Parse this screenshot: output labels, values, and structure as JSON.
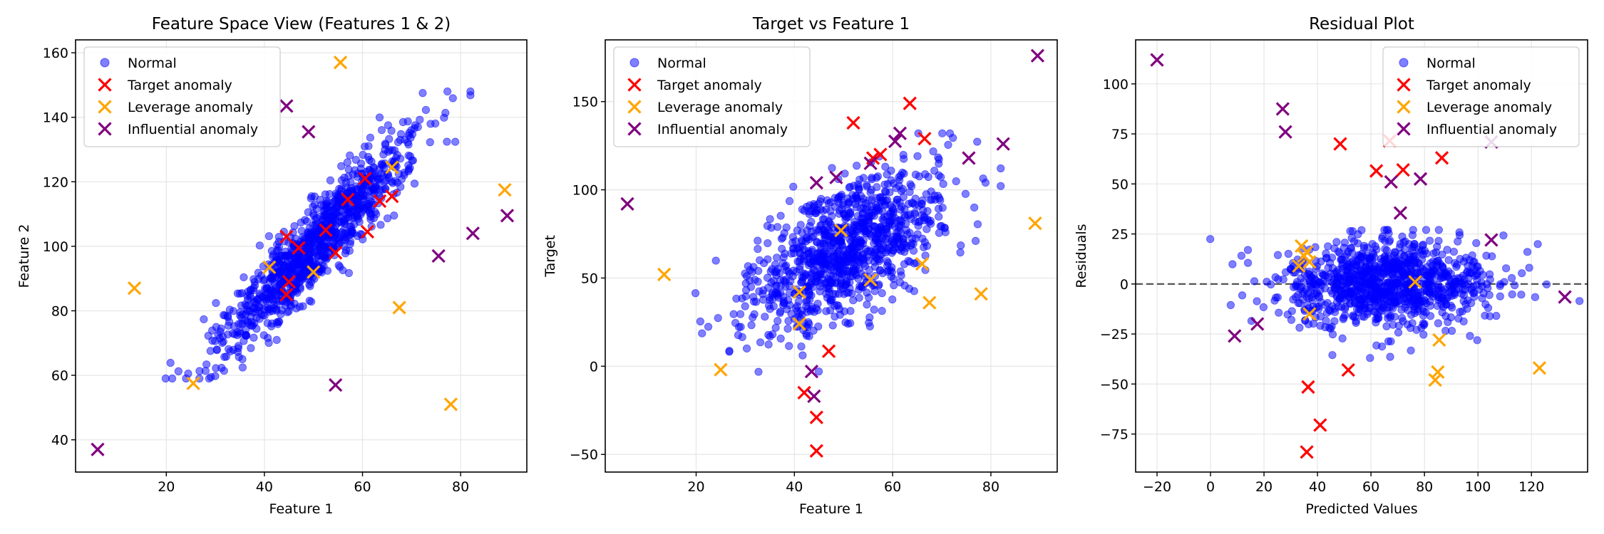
{
  "chart_data": [
    {
      "type": "scatter",
      "title": "Feature Space View (Features 1 & 2)",
      "xlabel": "Feature 1",
      "ylabel": "Feature 2",
      "xlim": [
        1.5,
        93.5
      ],
      "ylim": [
        30,
        164
      ],
      "xticks": [
        20,
        40,
        60,
        80
      ],
      "yticks": [
        40,
        60,
        80,
        100,
        120,
        140,
        160
      ],
      "grid": true,
      "legend": {
        "placement": "upper-left",
        "entries": [
          "Normal",
          "Target anomaly",
          "Leverage anomaly",
          "Influential anomaly"
        ]
      },
      "normal_cloud": {
        "description_center": [
          50,
          100
        ],
        "count": 1000,
        "x_range": [
          18,
          82
        ],
        "y_range": [
          59,
          148
        ],
        "trend": "positive"
      },
      "series": [
        {
          "name": "Target anomaly",
          "color": "#ff0000",
          "marker": "x",
          "points": [
            [
              44.5,
              103
            ],
            [
              45,
              89
            ],
            [
              44.5,
              85
            ],
            [
              47,
              99.5
            ],
            [
              52.5,
              105
            ],
            [
              54.5,
              98
            ],
            [
              57,
              114.5
            ],
            [
              63.5,
              114
            ],
            [
              66,
              115.5
            ],
            [
              60.5,
              121
            ],
            [
              61,
              104.5
            ]
          ]
        },
        {
          "name": "Leverage anomaly",
          "color": "#ffa500",
          "marker": "x",
          "points": [
            [
              13.5,
              87
            ],
            [
              25.5,
              57.5
            ],
            [
              41,
              93.5
            ],
            [
              50,
              92
            ],
            [
              55.5,
              157
            ],
            [
              66,
              124.5
            ],
            [
              67.5,
              81
            ],
            [
              78,
              51
            ],
            [
              89,
              117.5
            ]
          ]
        },
        {
          "name": "Influential anomaly",
          "color": "#800080",
          "marker": "x",
          "points": [
            [
              6,
              37
            ],
            [
              44.5,
              143.5
            ],
            [
              49,
              135.5
            ],
            [
              54.5,
              57
            ],
            [
              75.5,
              97
            ],
            [
              82.5,
              104
            ],
            [
              89.5,
              109.5
            ]
          ]
        }
      ]
    },
    {
      "type": "scatter",
      "title": "Target vs Feature 1",
      "xlabel": "Feature 1",
      "ylabel": "Target",
      "xlim": [
        1.5,
        93.5
      ],
      "ylim": [
        -60,
        185
      ],
      "xticks": [
        20,
        40,
        60,
        80
      ],
      "yticks": [
        -50,
        0,
        50,
        100,
        150
      ],
      "grid": true,
      "legend": {
        "placement": "upper-left",
        "entries": [
          "Normal",
          "Target anomaly",
          "Leverage anomaly",
          "Influential anomaly"
        ]
      },
      "normal_cloud": {
        "count": 1000,
        "x_range": [
          18,
          82
        ],
        "y_range": [
          -6,
          132
        ],
        "trend": "positive"
      },
      "series": [
        {
          "name": "Target anomaly",
          "color": "#ff0000",
          "marker": "x",
          "points": [
            [
              52,
              138
            ],
            [
              63.5,
              149
            ],
            [
              66.5,
              129
            ],
            [
              57.5,
              120
            ],
            [
              56,
              118
            ],
            [
              47,
              8.5
            ],
            [
              42,
              -15
            ],
            [
              44.5,
              -29
            ],
            [
              44.5,
              -48
            ]
          ]
        },
        {
          "name": "Leverage anomaly",
          "color": "#ffa500",
          "marker": "x",
          "points": [
            [
              13.5,
              52
            ],
            [
              25,
              -2
            ],
            [
              41,
              42
            ],
            [
              41,
              24
            ],
            [
              49.5,
              77
            ],
            [
              55.5,
              49
            ],
            [
              66,
              58
            ],
            [
              67.5,
              36
            ],
            [
              78,
              41
            ],
            [
              89,
              81
            ]
          ]
        },
        {
          "name": "Influential anomaly",
          "color": "#800080",
          "marker": "x",
          "points": [
            [
              6,
              92
            ],
            [
              44.5,
              104
            ],
            [
              48.5,
              107
            ],
            [
              55.5,
              115
            ],
            [
              60.5,
              127.5
            ],
            [
              61.5,
              132
            ],
            [
              75.5,
              118
            ],
            [
              82.5,
              126
            ],
            [
              89.5,
              176
            ],
            [
              43.5,
              -3
            ],
            [
              44,
              -17
            ]
          ]
        }
      ]
    },
    {
      "type": "scatter",
      "title": "Residual Plot",
      "xlabel": "Predicted Values",
      "ylabel": "Residuals",
      "xlim": [
        -28,
        141
      ],
      "ylim": [
        -94,
        122
      ],
      "xticks": [
        -20,
        0,
        20,
        40,
        60,
        80,
        100,
        120
      ],
      "yticks": [
        -75,
        -50,
        -25,
        0,
        25,
        50,
        75,
        100
      ],
      "grid": true,
      "reference_line": {
        "y": 0,
        "style": "dashed",
        "color": "#555555"
      },
      "legend": {
        "placement": "upper-right",
        "entries": [
          "Normal",
          "Target anomaly",
          "Leverage anomaly",
          "Influential anomaly"
        ]
      },
      "normal_cloud": {
        "count": 1000,
        "x_range": [
          -6,
          120
        ],
        "y_range": [
          -38,
          28
        ],
        "trend": "none"
      },
      "series": [
        {
          "name": "Target anomaly",
          "color": "#ff0000",
          "marker": "x",
          "points": [
            [
              48.5,
              70
            ],
            [
              62,
              56.5
            ],
            [
              67,
              71.5
            ],
            [
              72,
              57
            ],
            [
              86.5,
              63
            ],
            [
              51.5,
              -43
            ],
            [
              36.5,
              -51.5
            ],
            [
              41,
              -70.5
            ],
            [
              36,
              -84
            ]
          ]
        },
        {
          "name": "Leverage anomaly",
          "color": "#ffa500",
          "marker": "x",
          "points": [
            [
              34,
              19
            ],
            [
              36,
              16
            ],
            [
              33,
              9
            ],
            [
              37,
              11
            ],
            [
              35,
              14
            ],
            [
              37,
              -15
            ],
            [
              76.5,
              1
            ],
            [
              85.5,
              -28
            ],
            [
              85,
              -44
            ],
            [
              84,
              -48
            ],
            [
              123,
              -42
            ]
          ]
        },
        {
          "name": "Influential anomaly",
          "color": "#800080",
          "marker": "x",
          "points": [
            [
              -20,
              112
            ],
            [
              27,
              87.5
            ],
            [
              28,
              76
            ],
            [
              9,
              -26
            ],
            [
              17.5,
              -20
            ],
            [
              67.5,
              51
            ],
            [
              71,
              35.5
            ],
            [
              78.5,
              52.5
            ],
            [
              105,
              71
            ],
            [
              105,
              22
            ],
            [
              132.5,
              -6.5
            ]
          ]
        }
      ]
    }
  ]
}
